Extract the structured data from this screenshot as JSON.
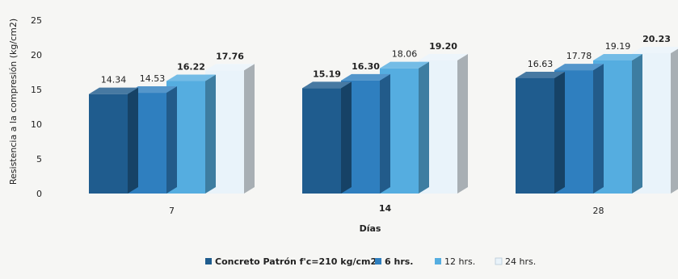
{
  "chart_data": {
    "type": "bar",
    "title": "",
    "xlabel": "Días",
    "ylabel": "Resistencia a la compresión (kg/cm2)",
    "categories": [
      "7",
      "14",
      "28"
    ],
    "ylim": [
      0,
      25
    ],
    "yticks": [
      "0",
      "5",
      "10",
      "15",
      "20",
      "25"
    ],
    "grid": false,
    "legend_position": "bottom",
    "series": [
      {
        "name": "Concreto Patrón f'c=210 kg/cm2",
        "values": [
          14.34,
          15.19,
          16.63
        ],
        "labels": [
          "14.34",
          "15.19",
          "16.63"
        ],
        "color": "#1f5c8e"
      },
      {
        "name": "6 hrs.",
        "values": [
          14.53,
          16.3,
          17.78
        ],
        "labels": [
          "14.53",
          "16.30",
          "17.78"
        ],
        "color": "#2f7fbf"
      },
      {
        "name": "12 hrs.",
        "values": [
          16.22,
          18.06,
          19.19
        ],
        "labels": [
          "16.22",
          "18.06",
          "19.19"
        ],
        "color": "#55ade0"
      },
      {
        "name": "24 hrs.",
        "values": [
          17.76,
          19.2,
          20.23
        ],
        "labels": [
          "17.76",
          "19.20",
          "20.23"
        ],
        "color": "#e9f3fa"
      }
    ]
  }
}
